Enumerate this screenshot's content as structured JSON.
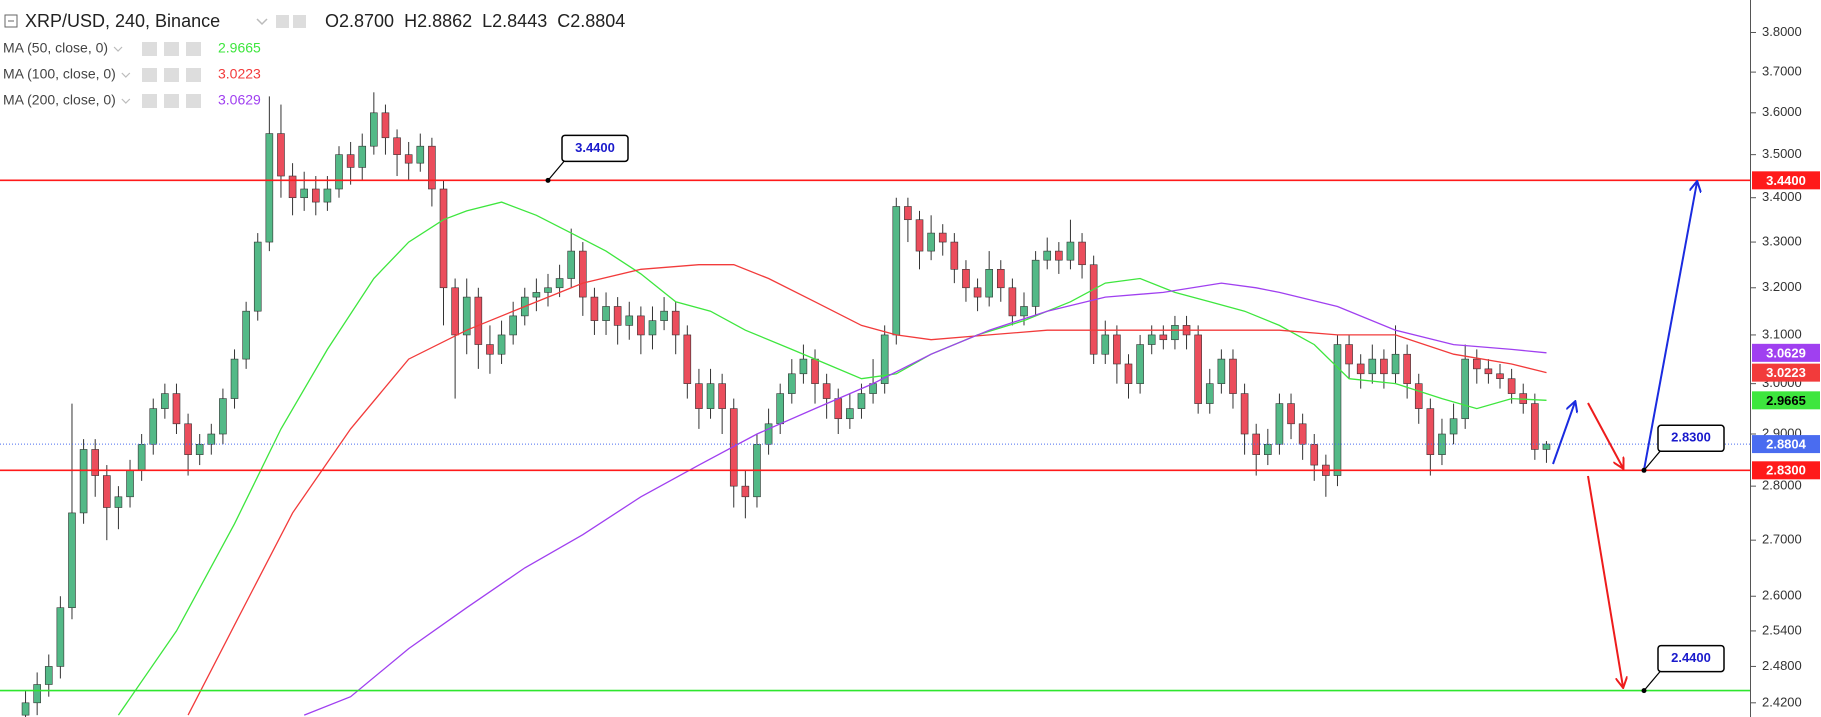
{
  "header": {
    "symbol": "XRP/USD, 240, Binance",
    "ohlc": [
      {
        "key": "O",
        "value": "2.8700"
      },
      {
        "key": "H",
        "value": "2.8862"
      },
      {
        "key": "L",
        "value": "2.8443"
      },
      {
        "key": "C",
        "value": "2.8804"
      }
    ]
  },
  "chart_data": {
    "type": "candlestick",
    "log": true,
    "grid": false,
    "up_color": "#53b987",
    "down_color": "#eb4d5c",
    "ylim": [
      2.397,
      3.884
    ],
    "yticks": [
      {
        "value": 3.8,
        "label": "3.8000"
      },
      {
        "value": 3.7,
        "label": "3.7000"
      },
      {
        "value": 3.6,
        "label": "3.6000"
      },
      {
        "value": 3.5,
        "label": "3.5000"
      },
      {
        "value": 3.4,
        "label": "3.4000"
      },
      {
        "value": 3.3,
        "label": "3.3000"
      },
      {
        "value": 3.2,
        "label": "3.2000"
      },
      {
        "value": 3.1,
        "label": "3.1000"
      },
      {
        "value": 3.0,
        "label": "3.0000"
      },
      {
        "value": 2.9,
        "label": "2.9000"
      },
      {
        "value": 2.8,
        "label": "2.8000"
      },
      {
        "value": 2.7,
        "label": "2.7000"
      },
      {
        "value": 2.6,
        "label": "2.6000"
      },
      {
        "value": 2.54,
        "label": "2.5400"
      },
      {
        "value": 2.48,
        "label": "2.4800"
      },
      {
        "value": 2.42,
        "label": "2.4200"
      }
    ],
    "open": [
      2.4,
      2.42,
      2.45,
      2.48,
      2.58,
      2.75,
      2.87,
      2.82,
      2.76,
      2.78,
      2.83,
      2.88,
      2.95,
      2.98,
      2.92,
      2.86,
      2.88,
      2.9,
      2.97,
      3.05,
      3.15,
      3.3,
      3.55,
      3.45,
      3.4,
      3.42,
      3.39,
      3.42,
      3.5,
      3.47,
      3.52,
      3.6,
      3.54,
      3.5,
      3.48,
      3.52,
      3.42,
      3.2,
      3.1,
      3.18,
      3.08,
      3.06,
      3.1,
      3.14,
      3.18,
      3.19,
      3.2,
      3.22,
      3.28,
      3.18,
      3.13,
      3.16,
      3.12,
      3.14,
      3.1,
      3.13,
      3.15,
      3.1,
      3.0,
      2.95,
      3.0,
      2.95,
      2.8,
      2.78,
      2.88,
      2.92,
      2.98,
      3.02,
      3.05,
      3.0,
      2.97,
      2.93,
      2.95,
      2.98,
      3.0,
      3.1,
      3.38,
      3.35,
      3.28,
      3.32,
      3.3,
      3.24,
      3.2,
      3.18,
      3.24,
      3.2,
      3.14,
      3.16,
      3.26,
      3.28,
      3.26,
      3.3,
      3.25,
      3.06,
      3.1,
      3.04,
      3.0,
      3.08,
      3.1,
      3.09,
      3.12,
      3.1,
      2.96,
      3.0,
      3.05,
      2.98,
      2.9,
      2.86,
      2.88,
      2.96,
      2.92,
      2.88,
      2.84,
      2.82,
      3.08,
      3.04,
      3.02,
      3.05,
      3.02,
      3.06,
      3.0,
      2.95,
      2.86,
      2.9,
      2.93,
      3.05,
      3.03,
      3.02,
      3.01,
      2.98,
      2.96,
      2.87
    ],
    "high": [
      2.44,
      2.47,
      2.5,
      2.6,
      2.96,
      2.89,
      2.89,
      2.84,
      2.8,
      2.85,
      2.9,
      2.97,
      3.0,
      3.0,
      2.94,
      2.9,
      2.92,
      2.99,
      3.07,
      3.17,
      3.32,
      3.64,
      3.62,
      3.48,
      3.46,
      3.45,
      3.45,
      3.52,
      3.53,
      3.55,
      3.65,
      3.62,
      3.56,
      3.53,
      3.55,
      3.54,
      3.44,
      3.22,
      3.22,
      3.2,
      3.12,
      3.13,
      3.17,
      3.2,
      3.22,
      3.23,
      3.25,
      3.33,
      3.3,
      3.2,
      3.19,
      3.18,
      3.17,
      3.16,
      3.16,
      3.18,
      3.17,
      3.12,
      3.03,
      3.03,
      3.02,
      2.97,
      2.83,
      2.9,
      2.95,
      3.0,
      3.05,
      3.08,
      3.07,
      3.02,
      2.99,
      2.98,
      3.0,
      3.05,
      3.12,
      3.4,
      3.4,
      3.37,
      3.36,
      3.34,
      3.32,
      3.26,
      3.22,
      3.28,
      3.26,
      3.22,
      3.19,
      3.28,
      3.31,
      3.3,
      3.35,
      3.32,
      3.27,
      3.13,
      3.12,
      3.06,
      3.1,
      3.12,
      3.12,
      3.14,
      3.14,
      3.12,
      3.03,
      3.07,
      3.07,
      3.0,
      2.92,
      2.91,
      2.98,
      2.98,
      2.94,
      2.9,
      2.86,
      3.1,
      3.1,
      3.06,
      3.08,
      3.07,
      3.12,
      3.08,
      3.02,
      2.97,
      2.93,
      2.96,
      3.08,
      3.07,
      3.05,
      3.04,
      3.03,
      3.0,
      2.98,
      2.8862
    ],
    "low": [
      2.38,
      2.4,
      2.43,
      2.46,
      2.56,
      2.73,
      2.78,
      2.7,
      2.72,
      2.76,
      2.81,
      2.86,
      2.93,
      2.9,
      2.82,
      2.84,
      2.86,
      2.88,
      2.95,
      3.03,
      3.13,
      3.28,
      3.4,
      3.36,
      3.37,
      3.36,
      3.37,
      3.4,
      3.43,
      3.44,
      3.5,
      3.5,
      3.45,
      3.44,
      3.46,
      3.38,
      3.12,
      2.97,
      3.06,
      3.03,
      3.02,
      3.04,
      3.08,
      3.12,
      3.15,
      3.16,
      3.18,
      3.2,
      3.14,
      3.1,
      3.1,
      3.08,
      3.09,
      3.06,
      3.07,
      3.11,
      3.06,
      2.97,
      2.91,
      2.93,
      2.9,
      2.76,
      2.74,
      2.76,
      2.86,
      2.9,
      2.96,
      3.0,
      2.96,
      2.93,
      2.9,
      2.91,
      2.93,
      2.96,
      2.98,
      3.08,
      3.3,
      3.24,
      3.26,
      3.27,
      3.21,
      3.17,
      3.15,
      3.16,
      3.17,
      3.12,
      3.12,
      3.14,
      3.24,
      3.23,
      3.24,
      3.22,
      3.04,
      3.04,
      3.0,
      2.97,
      2.98,
      3.06,
      3.07,
      3.07,
      3.07,
      2.94,
      2.94,
      2.98,
      2.95,
      2.86,
      2.82,
      2.84,
      2.86,
      2.89,
      2.85,
      2.81,
      2.78,
      2.8,
      3.01,
      2.99,
      3.0,
      2.99,
      3.0,
      2.97,
      2.92,
      2.82,
      2.84,
      2.88,
      2.91,
      3.0,
      3.0,
      2.99,
      2.96,
      2.94,
      2.85,
      2.8443
    ],
    "close": [
      2.42,
      2.45,
      2.48,
      2.58,
      2.75,
      2.87,
      2.82,
      2.76,
      2.78,
      2.83,
      2.88,
      2.95,
      2.98,
      2.92,
      2.86,
      2.88,
      2.9,
      2.97,
      3.05,
      3.15,
      3.3,
      3.55,
      3.45,
      3.4,
      3.42,
      3.39,
      3.42,
      3.5,
      3.47,
      3.52,
      3.6,
      3.54,
      3.5,
      3.48,
      3.52,
      3.42,
      3.2,
      3.1,
      3.18,
      3.08,
      3.06,
      3.1,
      3.14,
      3.18,
      3.19,
      3.2,
      3.22,
      3.28,
      3.18,
      3.13,
      3.16,
      3.12,
      3.14,
      3.1,
      3.13,
      3.15,
      3.1,
      3.0,
      2.95,
      3.0,
      2.95,
      2.8,
      2.78,
      2.88,
      2.92,
      2.98,
      3.02,
      3.05,
      3.0,
      2.97,
      2.93,
      2.95,
      2.98,
      3.0,
      3.1,
      3.38,
      3.35,
      3.28,
      3.32,
      3.3,
      3.24,
      3.2,
      3.18,
      3.24,
      3.2,
      3.14,
      3.16,
      3.26,
      3.28,
      3.26,
      3.3,
      3.25,
      3.06,
      3.1,
      3.04,
      3.0,
      3.08,
      3.1,
      3.09,
      3.12,
      3.1,
      2.96,
      3.0,
      3.05,
      2.98,
      2.9,
      2.86,
      2.88,
      2.96,
      2.92,
      2.88,
      2.84,
      2.82,
      3.08,
      3.04,
      3.02,
      3.05,
      3.02,
      3.06,
      3.0,
      2.95,
      2.86,
      2.9,
      2.93,
      3.05,
      3.03,
      3.02,
      3.01,
      2.98,
      2.96,
      2.87,
      2.8804
    ],
    "series": [
      {
        "name": "MA (50, close, 0)",
        "color": "#3ee63e",
        "legend_value": "2.9665",
        "x": [
          8,
          13,
          18,
          22,
          26,
          30,
          33,
          36,
          38,
          41,
          44,
          47,
          50,
          53,
          56,
          59,
          62,
          66,
          69,
          72,
          75,
          78,
          82,
          86,
          90,
          93,
          96,
          99,
          102,
          105,
          108,
          111,
          114,
          118,
          122,
          125,
          128,
          131
        ],
        "values": [
          2.4,
          2.54,
          2.73,
          2.91,
          3.07,
          3.22,
          3.3,
          3.35,
          3.37,
          3.39,
          3.36,
          3.32,
          3.28,
          3.23,
          3.17,
          3.15,
          3.11,
          3.07,
          3.04,
          3.01,
          3.02,
          3.06,
          3.1,
          3.13,
          3.17,
          3.21,
          3.22,
          3.19,
          3.17,
          3.15,
          3.12,
          3.08,
          3.01,
          3.0,
          2.97,
          2.95,
          2.97,
          2.9665
        ]
      },
      {
        "name": "MA (100, close, 0)",
        "color": "#f23b3b",
        "legend_value": "3.0223",
        "x": [
          14,
          18,
          23,
          28,
          33,
          38,
          43,
          48,
          53,
          58,
          61,
          64,
          68,
          72,
          75,
          78,
          83,
          88,
          93,
          98,
          103,
          108,
          113,
          118,
          123,
          128,
          131
        ],
        "values": [
          2.4,
          2.55,
          2.75,
          2.91,
          3.05,
          3.11,
          3.16,
          3.21,
          3.24,
          3.25,
          3.25,
          3.22,
          3.17,
          3.12,
          3.1,
          3.09,
          3.1,
          3.11,
          3.11,
          3.11,
          3.11,
          3.11,
          3.1,
          3.1,
          3.06,
          3.04,
          3.0223
        ]
      },
      {
        "name": "MA (200, close, 0)",
        "color": "#a040f0",
        "legend_value": "3.0629",
        "x": [
          24,
          28,
          33,
          38,
          43,
          48,
          53,
          58,
          63,
          68,
          73,
          78,
          83,
          88,
          93,
          98,
          103,
          106,
          108,
          113,
          118,
          123,
          128,
          131
        ],
        "values": [
          2.4,
          2.43,
          2.51,
          2.58,
          2.65,
          2.71,
          2.78,
          2.84,
          2.9,
          2.95,
          3.0,
          3.06,
          3.11,
          3.15,
          3.18,
          3.19,
          3.21,
          3.2,
          3.19,
          3.16,
          3.11,
          3.08,
          3.07,
          3.0629
        ]
      }
    ],
    "levels": [
      {
        "value": 3.44,
        "label": "3.4400",
        "color": "#ff1a1a",
        "axis_tag": true
      },
      {
        "value": 2.83,
        "label": "2.8300",
        "color": "#ff1a1a",
        "axis_tag": true
      },
      {
        "value": 2.44,
        "label": "2.4400",
        "color": "#2ee62e",
        "axis_tag": false
      }
    ],
    "last_price": {
      "value": 2.8804,
      "label": "2.8804",
      "color": "#4a6cf0"
    }
  }
}
